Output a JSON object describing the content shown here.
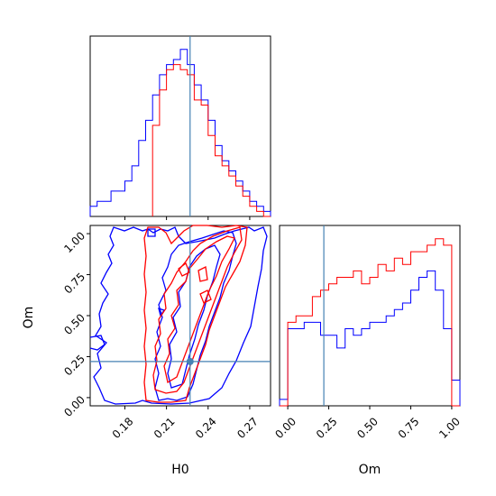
{
  "chart_data": [
    {
      "type": "histogram",
      "panel": "H0 marginal",
      "xlabel": "",
      "ylabel": "",
      "xlim": [
        0.155,
        0.285
      ],
      "truth": 0.227,
      "bins": [
        0.155,
        0.16,
        0.165,
        0.17,
        0.175,
        0.18,
        0.185,
        0.19,
        0.195,
        0.2,
        0.205,
        0.21,
        0.215,
        0.22,
        0.225,
        0.23,
        0.235,
        0.24,
        0.245,
        0.25,
        0.255,
        0.26,
        0.265,
        0.27,
        0.275,
        0.28,
        0.285
      ],
      "series": [
        {
          "color": "#0000ff",
          "values": [
            2,
            3,
            3,
            5,
            5,
            7,
            10,
            15,
            19,
            24,
            28,
            30,
            31,
            33,
            30,
            26,
            23,
            19,
            14,
            11,
            9,
            7,
            5,
            3,
            2,
            1
          ]
        },
        {
          "color": "#ff0000",
          "values": [
            0,
            0,
            0,
            0,
            0,
            0,
            0,
            0,
            0,
            18,
            25,
            29,
            30,
            29,
            28,
            23,
            22,
            16,
            12,
            10,
            8,
            6,
            4,
            2,
            1,
            0
          ]
        }
      ]
    },
    {
      "type": "contour",
      "panel": "H0 vs Om",
      "xlabel": "H0",
      "ylabel": "Om",
      "xlim": [
        0.155,
        0.285
      ],
      "ylim": [
        -0.05,
        1.05
      ],
      "xticks": [
        "0.18",
        "0.21",
        "0.24",
        "0.27"
      ],
      "yticks": [
        "0.00",
        "0.25",
        "0.50",
        "0.75",
        "1.00"
      ],
      "truth": {
        "x": 0.227,
        "y": 0.22
      },
      "series": [
        {
          "color": "#0000ff",
          "levels": [
            "outer",
            "middle",
            "inner"
          ]
        },
        {
          "color": "#ff0000",
          "levels": [
            "outer",
            "middle",
            "inner"
          ]
        }
      ]
    },
    {
      "type": "histogram",
      "panel": "Om marginal",
      "xlabel": "Om",
      "ylabel": "",
      "xlim": [
        -0.05,
        1.05
      ],
      "xticks": [
        "0.00",
        "0.25",
        "0.50",
        "0.75",
        "1.00"
      ],
      "truth": 0.22,
      "bins": [
        -0.05,
        0.0,
        0.05,
        0.1,
        0.15,
        0.2,
        0.25,
        0.3,
        0.35,
        0.4,
        0.45,
        0.5,
        0.55,
        0.6,
        0.65,
        0.7,
        0.75,
        0.8,
        0.85,
        0.9,
        0.95,
        1.0,
        1.05
      ],
      "series": [
        {
          "color": "#0000ff",
          "values": [
            1,
            12,
            12,
            13,
            13,
            11,
            11,
            9,
            12,
            11,
            12,
            13,
            13,
            14,
            15,
            16,
            18,
            20,
            21,
            18,
            12,
            4
          ]
        },
        {
          "color": "#ff0000",
          "values": [
            0,
            13,
            14,
            14,
            17,
            18,
            19,
            20,
            20,
            21,
            19,
            20,
            22,
            21,
            23,
            22,
            24,
            24,
            25,
            26,
            25,
            0
          ]
        }
      ]
    }
  ],
  "labels": {
    "x_bottom_left": "H0",
    "x_bottom_right": "Om",
    "y_left": "Om"
  }
}
